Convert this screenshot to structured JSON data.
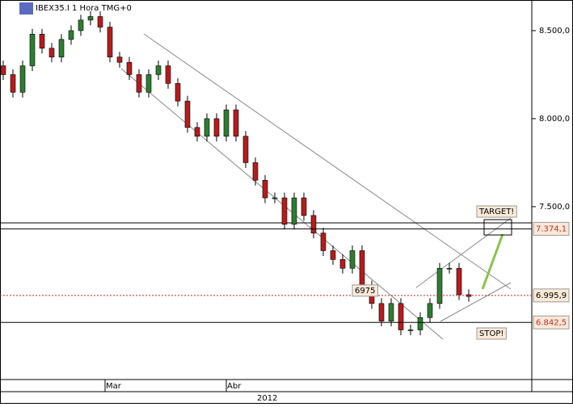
{
  "header": {
    "symbol": "IBEX35.I 1 Hora TMG+0"
  },
  "chart_data": {
    "type": "candlestick",
    "ylim": [
      6518,
      8674
    ],
    "yticks": [
      {
        "value": 8500,
        "label": "8.500,0"
      },
      {
        "value": 8000,
        "label": "8.000,0"
      },
      {
        "value": 7500,
        "label": "7.500,0"
      }
    ],
    "x_axis_labels": [
      "Mar",
      "Abr"
    ],
    "x_axis_year": "2012",
    "up_color": "#2e7d32",
    "down_color": "#b71c1c",
    "open": [
      8300,
      8250,
      8150,
      8300,
      8480,
      8400,
      8350,
      8450,
      8500,
      8560,
      8580,
      8520,
      8350,
      8320,
      8250,
      8150,
      8250,
      8300,
      8200,
      8100,
      7950,
      7900,
      8000,
      7900,
      8050,
      7900,
      7750,
      7650,
      7550,
      7550,
      7400,
      7550,
      7450,
      7350,
      7250,
      7200,
      7150,
      7250,
      7050,
      6950,
      6850,
      6950,
      6800,
      6800,
      6870,
      6950,
      7150,
      7150,
      7000
    ],
    "high": [
      8330,
      8280,
      8330,
      8510,
      8510,
      8430,
      8480,
      8530,
      8590,
      8610,
      8610,
      8550,
      8380,
      8350,
      8280,
      8280,
      8330,
      8330,
      8230,
      8130,
      7980,
      8030,
      8030,
      8080,
      8080,
      7930,
      7780,
      7680,
      7580,
      7580,
      7580,
      7580,
      7480,
      7380,
      7280,
      7230,
      7280,
      7280,
      7080,
      6980,
      6980,
      6980,
      6830,
      6900,
      6980,
      7180,
      7180,
      7180,
      7030
    ],
    "low": [
      8220,
      8120,
      8120,
      8270,
      8370,
      8320,
      8320,
      8420,
      8470,
      8530,
      8490,
      8320,
      8290,
      8220,
      8120,
      8120,
      8220,
      8170,
      8070,
      7920,
      7870,
      7870,
      7870,
      7870,
      7870,
      7720,
      7620,
      7520,
      7520,
      7370,
      7370,
      7420,
      7320,
      7220,
      7170,
      7120,
      7120,
      7020,
      6920,
      6820,
      6820,
      6770,
      6770,
      6770,
      6840,
      6920,
      7120,
      6970,
      6960
    ],
    "close": [
      8250,
      8150,
      8300,
      8480,
      8400,
      8350,
      8450,
      8500,
      8560,
      8580,
      8520,
      8350,
      8320,
      8250,
      8150,
      8250,
      8300,
      8200,
      8100,
      7950,
      7900,
      8000,
      7900,
      8050,
      7900,
      7750,
      7650,
      7550,
      7550,
      7400,
      7550,
      7450,
      7350,
      7250,
      7200,
      7150,
      7250,
      7050,
      6950,
      6850,
      6950,
      6800,
      6800,
      6870,
      6950,
      7150,
      7150,
      7000,
      6990
    ],
    "levels": [
      {
        "value": 7374.1,
        "label": "7.374,1",
        "color": "#c62828"
      },
      {
        "value": 6995.9,
        "label": "6.995,9",
        "color": "#000000"
      },
      {
        "value": 6842.5,
        "label": "6.842,5",
        "color": "#c62828"
      }
    ],
    "annotations": [
      "6975",
      "TARGET!",
      "STOP!"
    ]
  }
}
